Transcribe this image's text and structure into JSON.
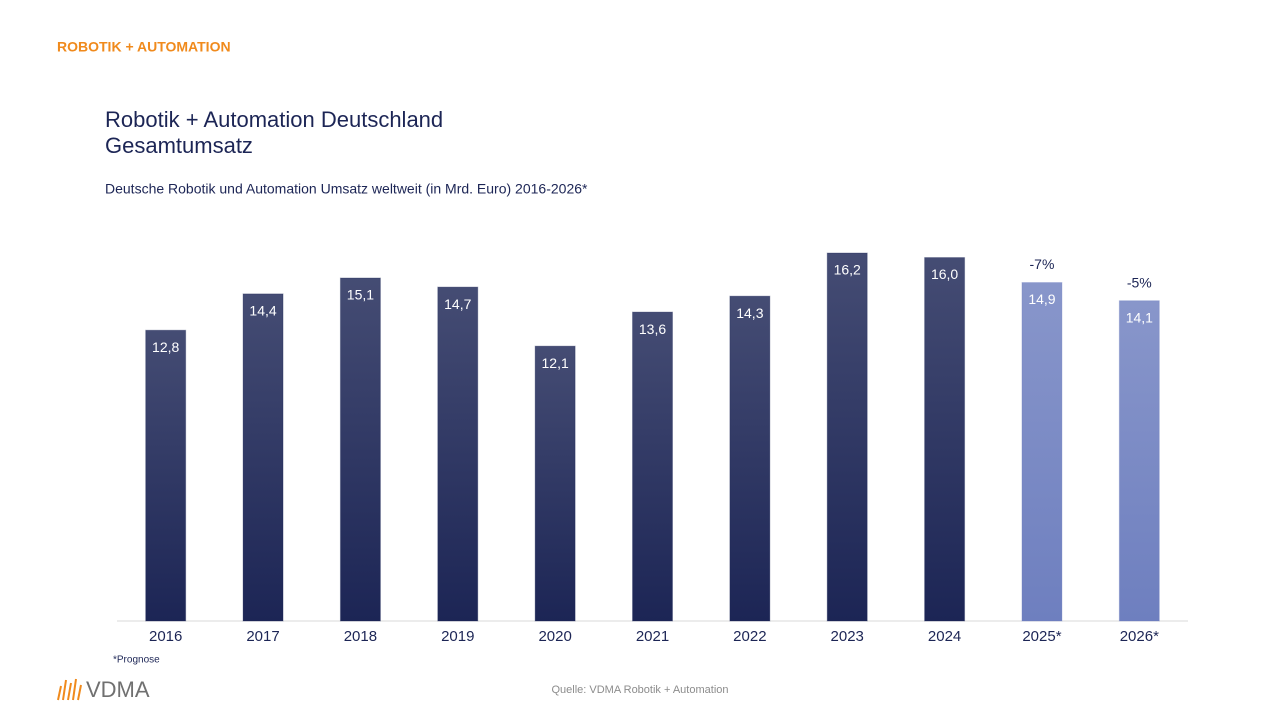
{
  "header": "ROBOTIK + AUTOMATION",
  "chart_data": {
    "type": "bar",
    "title": [
      "Robotik + Automation Deutschland",
      "Gesamtumsatz"
    ],
    "subtitle": "Deutsche Robotik und Automation Umsatz weltweit (in Mrd. Euro) 2016-2026*",
    "categories": [
      "2016",
      "2017",
      "2018",
      "2019",
      "2020",
      "2021",
      "2022",
      "2023",
      "2024",
      "2025*",
      "2026*"
    ],
    "values": [
      12.8,
      14.4,
      15.1,
      14.7,
      12.1,
      13.6,
      14.3,
      16.2,
      16.0,
      14.9,
      14.1
    ],
    "value_labels": [
      "12,8",
      "14,4",
      "15,1",
      "14,7",
      "12,1",
      "13,6",
      "14,3",
      "16,2",
      "16,0",
      "14,9",
      "14,1"
    ],
    "change_labels": [
      null,
      null,
      null,
      null,
      null,
      null,
      null,
      null,
      null,
      "-7%",
      "-5%"
    ],
    "colors": [
      "#1c2555",
      "#1c2555",
      "#1c2555",
      "#1c2555",
      "#1c2555",
      "#1c2555",
      "#1c2555",
      "#1c2555",
      "#1c2555",
      "#6e7fbf",
      "#6e7fbf"
    ],
    "footnote": "*Prognose"
  },
  "source": "Quelle: VDMA Robotik + Automation",
  "logo": "VDMA"
}
